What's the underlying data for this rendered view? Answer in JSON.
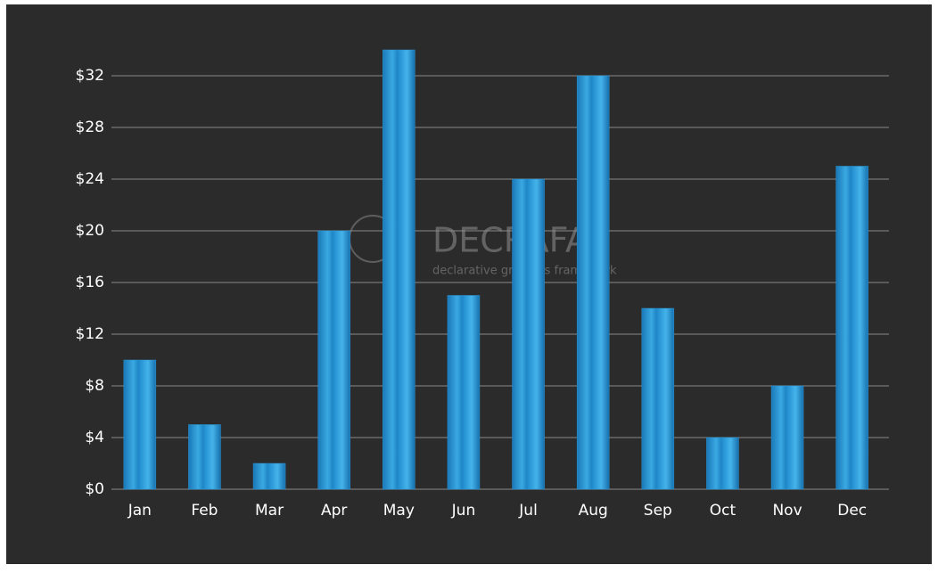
{
  "chart_data": {
    "type": "bar",
    "watermark": {
      "title": "DECRAFA",
      "subtitle": "declarative graphics framework"
    },
    "categories": [
      "Jan",
      "Feb",
      "Mar",
      "Apr",
      "May",
      "Jun",
      "Jul",
      "Aug",
      "Sep",
      "Oct",
      "Nov",
      "Dec"
    ],
    "values": [
      10,
      5,
      2,
      20,
      34,
      15,
      24,
      32,
      14,
      4,
      8,
      25
    ],
    "color": "#2a97d6",
    "ylim": [
      0,
      34
    ],
    "yticks": [
      {
        "value": 0,
        "label": "$0"
      },
      {
        "value": 4,
        "label": "$4"
      },
      {
        "value": 8,
        "label": "$8"
      },
      {
        "value": 12,
        "label": "$12"
      },
      {
        "value": 16,
        "label": "$16"
      },
      {
        "value": 20,
        "label": "$20"
      },
      {
        "value": 24,
        "label": "$24"
      },
      {
        "value": 28,
        "label": "$28"
      },
      {
        "value": 32,
        "label": "$32"
      }
    ],
    "grid": true
  }
}
